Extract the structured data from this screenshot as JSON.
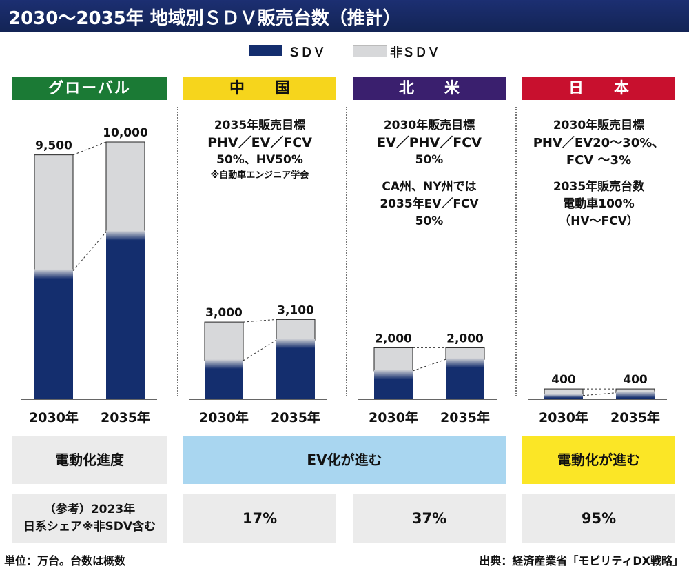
{
  "title": "2030～2035年  地域別ＳＤＶ販売台数（推計）",
  "legend": [
    {
      "label": "ＳＤＶ",
      "color": "#142e6e"
    },
    {
      "label": "非ＳＤＶ",
      "color": "#d7d8da"
    }
  ],
  "chart_data": {
    "type": "bar",
    "stacked": true,
    "unit_note": "単位：万台。台数は概数",
    "series_names": [
      "ＳＤＶ",
      "非ＳＤＶ"
    ],
    "panels": [
      {
        "region": "グローバル",
        "header_color": "#1b7a35",
        "categories": [
          "2030年",
          "2035年"
        ],
        "totals": [
          9500,
          10000
        ],
        "total_labels": [
          "9,500",
          "10,000"
        ],
        "sdv_estimate": [
          5000,
          6500
        ]
      },
      {
        "region": "中　　国",
        "header_color": "#f6d51c",
        "categories": [
          "2030年",
          "2035年"
        ],
        "totals": [
          3000,
          3100
        ],
        "total_labels": [
          "3,000",
          "3,100"
        ],
        "sdv_estimate": [
          1500,
          2300
        ]
      },
      {
        "region": "北　　米",
        "header_color": "#3a1f6e",
        "categories": [
          "2030年",
          "2035年"
        ],
        "totals": [
          2000,
          2000
        ],
        "total_labels": [
          "2,000",
          "2,000"
        ],
        "sdv_estimate": [
          1100,
          1550
        ]
      },
      {
        "region": "日　　本",
        "header_color": "#c8102e",
        "categories": [
          "2030年",
          "2035年"
        ],
        "totals": [
          400,
          400
        ],
        "total_labels": [
          "400",
          "400"
        ],
        "sdv_estimate": [
          140,
          250
        ]
      }
    ],
    "ylim": [
      0,
      10000
    ]
  },
  "notes": {
    "china": {
      "line1": "2035年販売目標",
      "line2": "PHV／EV／FCV",
      "line3": "50%、HV50%",
      "line4": "※自動車エンジニア学会"
    },
    "na": {
      "line1": "2030年販売目標",
      "line2": "EV／PHV／FCV",
      "line3": "50%",
      "line4": "CA州、NY州では",
      "line5": "2035年EV／FCV",
      "line6": "50%"
    },
    "japan": {
      "line1": "2030年販売目標",
      "line2": "PHV／EV20～30%、",
      "line3": "FCV ～3%",
      "line4": "2035年販売台数",
      "line5": "電動車100%",
      "line6": "（HV～FCV）"
    }
  },
  "bands": {
    "label": "電動化進度",
    "ev": "EV化が進む",
    "electrification": "電動化が進む"
  },
  "share": {
    "label_line1": "（参考）2023年",
    "label_line2": "日系シェア※非SDV含む",
    "china": "17%",
    "na": "37%",
    "japan": "95%"
  },
  "footer": {
    "unit": "単位：万台。台数は概数",
    "source": "出典：経済産業省「モビリティDX戦略」"
  }
}
